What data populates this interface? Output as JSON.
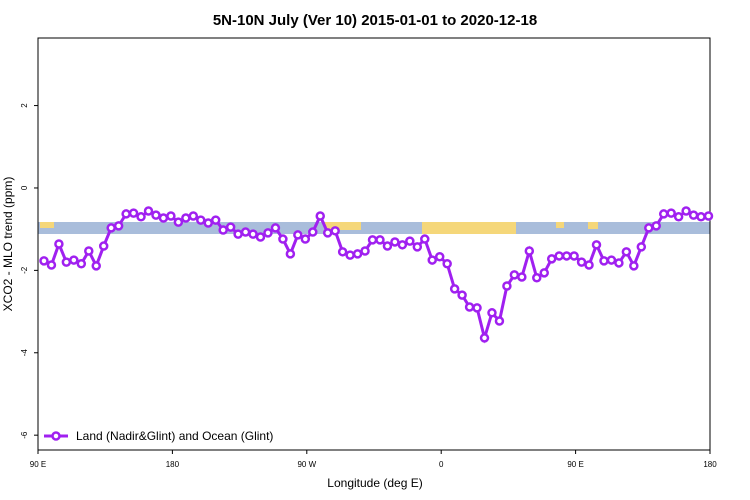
{
  "chart_data": {
    "type": "line",
    "title": "5N-10N July (Ver 10)   2015-01-01 to 2020-12-18",
    "x_label": "Longitude (deg E)",
    "y_label": "XCO2 - MLO trend (ppm)",
    "xlim": [
      90,
      540
    ],
    "xticks": [
      {
        "value": 90,
        "label": "90 E"
      },
      180,
      {
        "value": 270,
        "label": "90 W"
      },
      {
        "value": 360,
        "label": "0"
      },
      {
        "value": 450,
        "label": "90 E"
      },
      {
        "value": 540,
        "label": "180"
      }
    ],
    "ylim": [
      -6.36,
      3.64
    ],
    "yticks": [
      2,
      0,
      -2,
      -4,
      -6
    ],
    "legend": "bottom-left",
    "x": [
      94,
      99,
      104,
      109,
      114,
      119,
      124,
      129,
      134,
      139,
      144,
      149,
      154,
      159,
      164,
      169,
      174,
      179,
      184,
      189,
      194,
      199,
      204,
      209,
      214,
      219,
      224,
      229,
      234,
      239,
      244,
      249,
      254,
      259,
      264,
      269,
      274,
      279,
      284,
      289,
      294,
      299,
      304,
      309,
      314,
      319,
      324,
      329,
      334,
      339,
      344,
      349,
      354,
      359,
      364,
      369,
      374,
      379,
      384,
      389,
      394,
      399,
      404,
      409,
      414,
      419,
      424,
      429,
      434,
      439,
      444,
      449,
      454,
      459,
      464,
      469,
      474,
      479,
      484,
      489,
      494,
      499,
      504,
      509,
      514,
      519,
      524,
      529,
      534,
      539
    ],
    "series": [
      {
        "name": "Land (Nadir&Glint) and Ocean (Glint)",
        "color": "#a020f0",
        "values": [
          -1.77,
          -1.87,
          -1.36,
          -1.8,
          -1.75,
          -1.84,
          -1.53,
          -1.89,
          -1.41,
          -0.97,
          -0.92,
          -0.63,
          -0.61,
          -0.7,
          -0.56,
          -0.66,
          -0.73,
          -0.68,
          -0.83,
          -0.73,
          -0.68,
          -0.78,
          -0.85,
          -0.78,
          -1.02,
          -0.95,
          -1.12,
          -1.07,
          -1.12,
          -1.19,
          -1.09,
          -0.97,
          -1.24,
          -1.6,
          -1.14,
          -1.24,
          -1.07,
          -0.68,
          -1.09,
          -1.04,
          -1.55,
          -1.63,
          -1.6,
          -1.53,
          -1.26,
          -1.26,
          -1.41,
          -1.31,
          -1.38,
          -1.29,
          -1.43,
          -1.24,
          -1.75,
          -1.67,
          -1.84,
          -2.45,
          -2.6,
          -2.89,
          -2.91,
          -3.64,
          -3.03,
          -3.23,
          -2.38,
          -2.11,
          -2.16,
          -1.53,
          -2.18,
          -2.06,
          -1.72,
          -1.65,
          -1.65,
          -1.65,
          -1.8,
          -1.87,
          -1.38,
          -1.77,
          -1.75,
          -1.82,
          -1.55,
          -1.89,
          -1.43,
          -0.97,
          -0.92,
          -0.63,
          -0.61,
          -0.7,
          -0.56,
          -0.66,
          -0.7,
          -0.68
        ]
      }
    ]
  }
}
